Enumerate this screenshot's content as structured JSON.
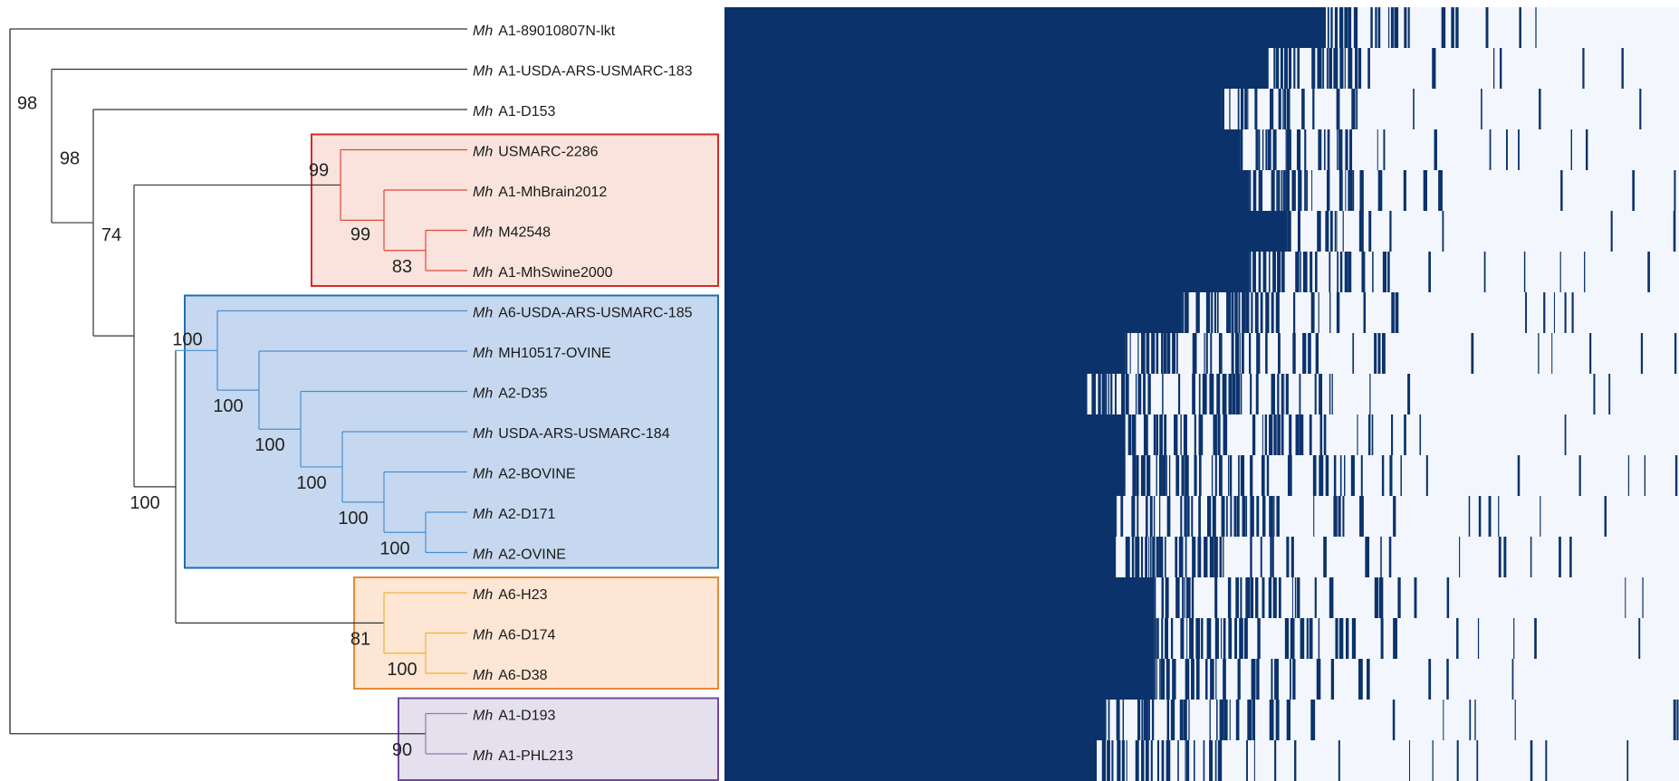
{
  "colors": {
    "clade_red": {
      "stroke": "#d9282b",
      "fill": "#f9e3dc",
      "line": "#e0473a"
    },
    "clade_blue": {
      "stroke": "#1f6fb4",
      "fill": "#c5d8ef",
      "line": "#4a8fd1"
    },
    "clade_orange": {
      "stroke": "#e38a3a",
      "fill": "#fde6d3",
      "line": "#f0b23a"
    },
    "clade_purple": {
      "stroke": "#6d4aa0",
      "fill": "#e5e0ee",
      "line": "#8c7ab8"
    },
    "heat_high": "#0b326b",
    "heat_low": "#f3f7fd",
    "tree_line": "#333333"
  },
  "taxa": [
    {
      "prefix": "Mh",
      "name": "A1-89010807N-lkt"
    },
    {
      "prefix": "Mh",
      "name": "A1-USDA-ARS-USMARC-183"
    },
    {
      "prefix": "Mh",
      "name": "A1-D153"
    },
    {
      "prefix": "Mh",
      "name": "USMARC-2286"
    },
    {
      "prefix": "Mh",
      "name": "A1-MhBrain2012"
    },
    {
      "prefix": "Mh",
      "name": "M42548"
    },
    {
      "prefix": "Mh",
      "name": "A1-MhSwine2000"
    },
    {
      "prefix": "Mh",
      "name": "A6-USDA-ARS-USMARC-185"
    },
    {
      "prefix": "Mh",
      "name": "MH10517-OVINE"
    },
    {
      "prefix": "Mh",
      "name": "A2-D35"
    },
    {
      "prefix": "Mh",
      "name": "USDA-ARS-USMARC-184"
    },
    {
      "prefix": "Mh",
      "name": "A2-BOVINE"
    },
    {
      "prefix": "Mh",
      "name": "A2-D171"
    },
    {
      "prefix": "Mh",
      "name": "A2-OVINE"
    },
    {
      "prefix": "Mh",
      "name": "A6-H23"
    },
    {
      "prefix": "Mh",
      "name": "A6-D174"
    },
    {
      "prefix": "Mh",
      "name": "A6-D38"
    },
    {
      "prefix": "Mh",
      "name": "A1-D193"
    },
    {
      "prefix": "Mh",
      "name": "A1-PHL213"
    }
  ],
  "bootstrap": [
    {
      "node": "root_inner",
      "value": "98"
    },
    {
      "node": "n_d153",
      "value": "98"
    },
    {
      "node": "n_main",
      "value": "74"
    },
    {
      "node": "red_top",
      "value": "99"
    },
    {
      "node": "red_mid",
      "value": "99"
    },
    {
      "node": "red_low",
      "value": "83"
    },
    {
      "node": "blue_top",
      "value": "100"
    },
    {
      "node": "blue_2",
      "value": "100"
    },
    {
      "node": "blue_3",
      "value": "100"
    },
    {
      "node": "blue_4",
      "value": "100"
    },
    {
      "node": "blue_5",
      "value": "100"
    },
    {
      "node": "blue_6",
      "value": "100"
    },
    {
      "node": "blue_orange",
      "value": "100"
    },
    {
      "node": "orange_top",
      "value": "81"
    },
    {
      "node": "orange_low",
      "value": "100"
    },
    {
      "node": "purple",
      "value": "90"
    }
  ],
  "heatmap": {
    "rows": 19,
    "solid_fraction": [
      0.63,
      0.57,
      0.52,
      0.54,
      0.55,
      0.59,
      0.55,
      0.48,
      0.42,
      0.38,
      0.42,
      0.42,
      0.41,
      0.41,
      0.45,
      0.45,
      0.45,
      0.4,
      0.39
    ],
    "noise_fraction": [
      0.18,
      0.2,
      0.22,
      0.22,
      0.22,
      0.2,
      0.21,
      0.3,
      0.32,
      0.36,
      0.34,
      0.34,
      0.34,
      0.34,
      0.28,
      0.28,
      0.28,
      0.3,
      0.3
    ]
  }
}
